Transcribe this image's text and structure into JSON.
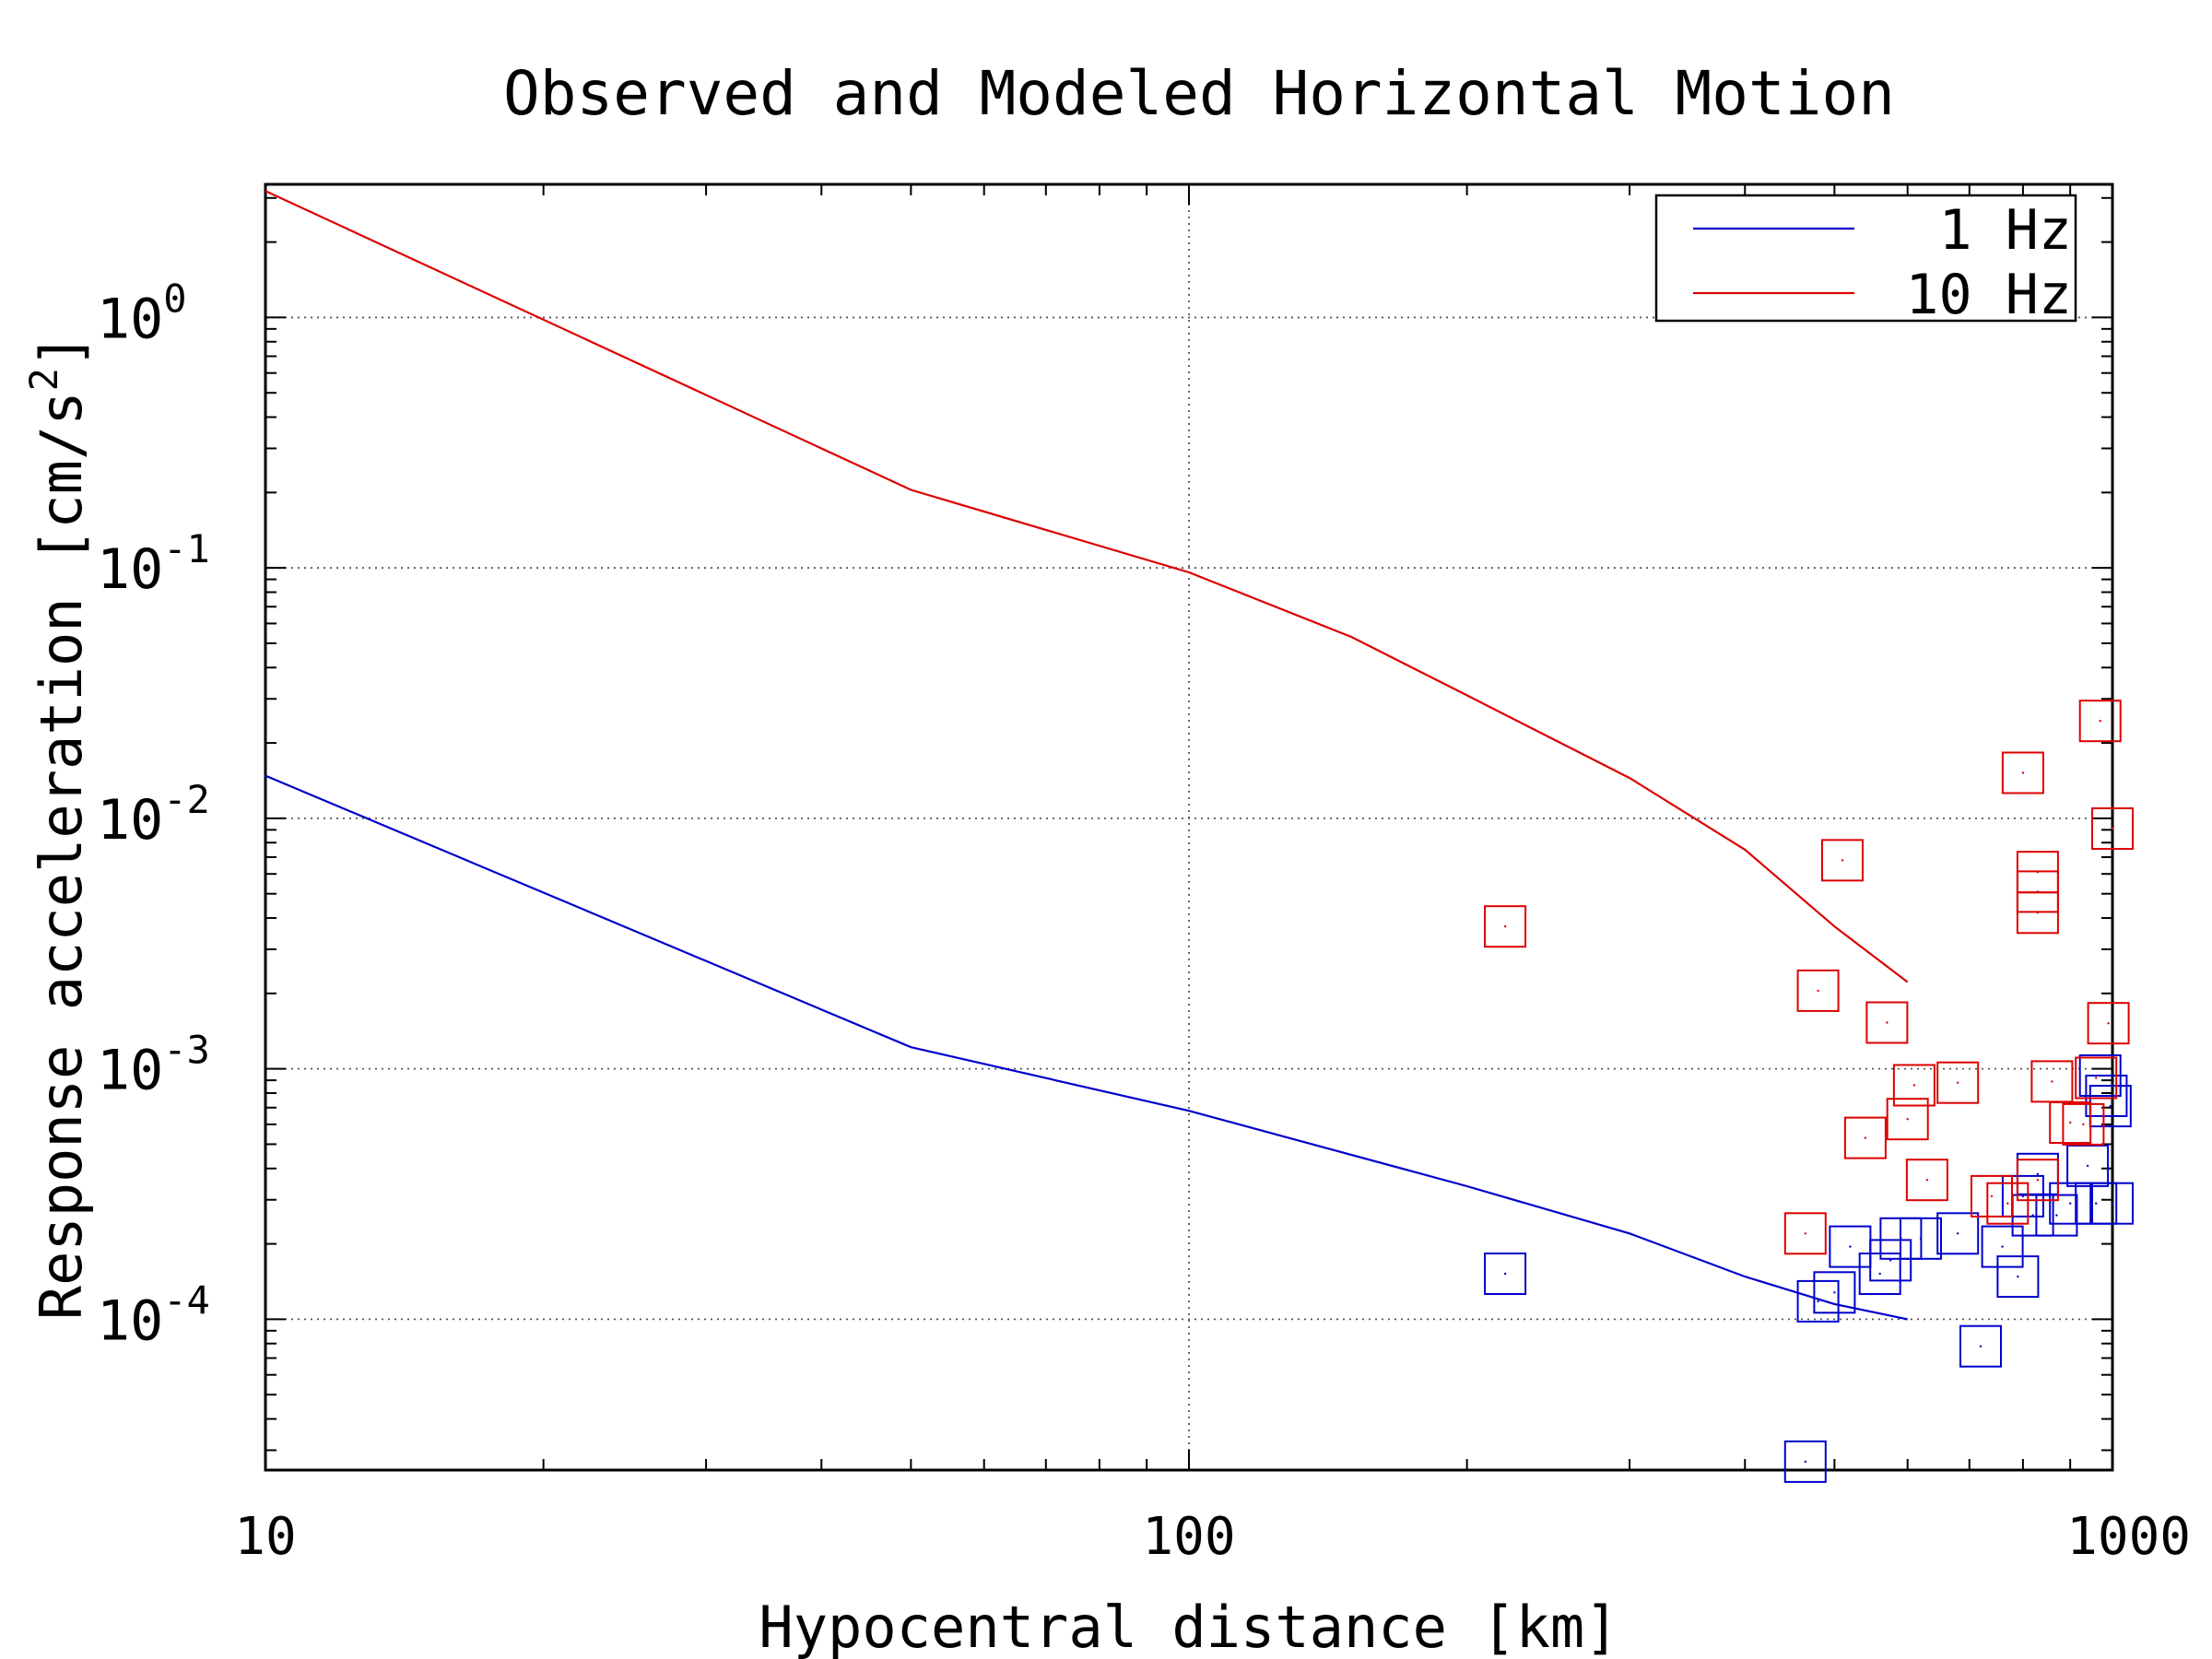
{
  "chart_data": {
    "type": "scatter",
    "title": "Observed and Modeled Horizontal Motion",
    "xlabel": "Hypocentral distance [km]",
    "ylabel_text": "Response acceleration [cm/s",
    "ylabel_sup": "2",
    "ylabel_close": "]",
    "x_scale": "log",
    "y_scale": "log",
    "xlim": [
      10,
      1000
    ],
    "ylim": [
      2.5e-05,
      3.4
    ],
    "grid": true,
    "x_ticks": [
      {
        "value": 10,
        "label": "10"
      },
      {
        "value": 100,
        "label": "100"
      },
      {
        "value": 1000,
        "label": "1000"
      }
    ],
    "y_ticks": [
      {
        "value": 1,
        "base": "10",
        "exp": "0"
      },
      {
        "value": 0.1,
        "base": "10",
        "exp": "-1"
      },
      {
        "value": 0.01,
        "base": "10",
        "exp": "-2"
      },
      {
        "value": 0.001,
        "base": "10",
        "exp": "-3"
      },
      {
        "value": 0.0001,
        "base": "10",
        "exp": "-4"
      }
    ],
    "legend": {
      "placement": "top-right",
      "entries": [
        {
          "label": "1 Hz",
          "color": "#0000cc"
        },
        {
          "label": "10 Hz",
          "color": "#dd0000"
        }
      ]
    },
    "model_lines": [
      {
        "label": "1 Hz",
        "color": "#0000cc",
        "x": [
          10,
          50,
          100,
          200,
          300,
          400,
          500,
          600
        ],
        "y": [
          0.0148,
          0.00122,
          0.00068,
          0.00034,
          0.00022,
          0.000148,
          0.000115,
          0.0001
        ]
      },
      {
        "label": "10 Hz",
        "color": "#dd0000",
        "x": [
          10,
          50,
          100,
          150,
          200,
          300,
          400,
          500,
          600
        ],
        "y": [
          3.2,
          0.205,
          0.096,
          0.053,
          0.031,
          0.0145,
          0.0075,
          0.0037,
          0.00222
        ]
      }
    ],
    "observed": [
      {
        "label": "1 Hz",
        "color": "#0000cc",
        "points": [
          [
            220,
            0.000152
          ],
          [
            465,
            2.7e-05
          ],
          [
            480,
            0.000118
          ],
          [
            500,
            0.000128
          ],
          [
            520,
            0.000195
          ],
          [
            560,
            0.000152
          ],
          [
            575,
            0.000172
          ],
          [
            590,
            0.00021
          ],
          [
            620,
            0.00021
          ],
          [
            680,
            0.00022
          ],
          [
            720,
            7.8e-05
          ],
          [
            760,
            0.000195
          ],
          [
            790,
            0.000148
          ],
          [
            800,
            0.00031
          ],
          [
            820,
            0.00026
          ],
          [
            830,
            0.00038
          ],
          [
            870,
            0.00026
          ],
          [
            900,
            0.00029
          ],
          [
            940,
            0.00041
          ],
          [
            960,
            0.00029
          ],
          [
            970,
            0.00094
          ],
          [
            985,
            0.00078
          ],
          [
            995,
            0.00071
          ],
          [
            1000,
            0.00029
          ]
        ]
      },
      {
        "label": "10 Hz",
        "color": "#dd0000",
        "points": [
          [
            220,
            0.0037
          ],
          [
            465,
            0.00022
          ],
          [
            480,
            0.00205
          ],
          [
            510,
            0.0068
          ],
          [
            540,
            0.00053
          ],
          [
            570,
            0.00153
          ],
          [
            600,
            0.00063
          ],
          [
            610,
            0.00086
          ],
          [
            630,
            0.00036
          ],
          [
            680,
            0.00088
          ],
          [
            740,
            0.00031
          ],
          [
            770,
            0.00029
          ],
          [
            800,
            0.0152
          ],
          [
            830,
            0.0061
          ],
          [
            830,
            0.0051
          ],
          [
            830,
            0.0042
          ],
          [
            830,
            0.00036
          ],
          [
            860,
            0.00089
          ],
          [
            900,
            0.00061
          ],
          [
            930,
            0.0006
          ],
          [
            960,
            0.00092
          ],
          [
            970,
            0.0245
          ],
          [
            990,
            0.00152
          ],
          [
            1000,
            0.0091
          ]
        ]
      }
    ]
  }
}
